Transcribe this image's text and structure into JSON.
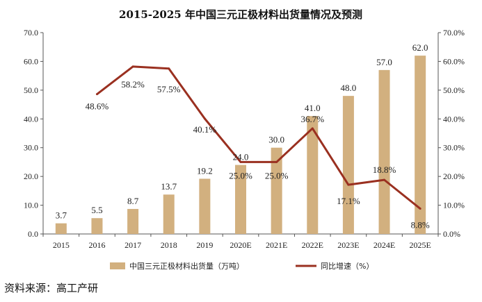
{
  "chart_data": {
    "type": "bar",
    "title": "2015-2025 年中国三元正极材料出货量情况及预测",
    "categories": [
      "2015",
      "2016",
      "2017",
      "2018",
      "2019",
      "2020E",
      "2021E",
      "2022E",
      "2023E",
      "2024E",
      "2025E"
    ],
    "series": [
      {
        "name": "中国三元正极材料出货量（万吨）",
        "type": "bar",
        "axis": "left",
        "values": [
          3.7,
          5.5,
          8.7,
          13.7,
          19.2,
          24.0,
          30.0,
          41.0,
          48.0,
          57.0,
          62.0
        ],
        "labels": [
          "3.7",
          "5.5",
          "8.7",
          "13.7",
          "19.2",
          "24.0",
          "30.0",
          "41.0",
          "48.0",
          "57.0",
          "62.0"
        ]
      },
      {
        "name": "同比增速（%）",
        "type": "line",
        "axis": "right",
        "values": [
          null,
          48.6,
          58.2,
          57.5,
          40.1,
          25.0,
          25.0,
          36.7,
          17.1,
          18.8,
          8.8
        ],
        "labels": [
          "",
          "48.6%",
          "58.2%",
          "57.5%",
          "40.1%",
          "25.0%",
          "25.0%",
          "36.7%",
          "17.1%",
          "18.8%",
          "8.8%"
        ]
      }
    ],
    "y_left": {
      "min": 0,
      "max": 70,
      "ticks": [
        "0.0",
        "10.0",
        "20.0",
        "30.0",
        "40.0",
        "50.0",
        "60.0",
        "70.0"
      ]
    },
    "y_right": {
      "min": 0,
      "max": 70,
      "ticks": [
        "0.0%",
        "10.0%",
        "20.0%",
        "30.0%",
        "40.0%",
        "50.0%",
        "60.0%",
        "70.0%"
      ]
    },
    "legend_position": "bottom",
    "grid": false
  },
  "colors": {
    "bar": "#d2b07f",
    "line": "#9a3020",
    "axis": "#555555"
  },
  "source": "资料来源：高工产研"
}
